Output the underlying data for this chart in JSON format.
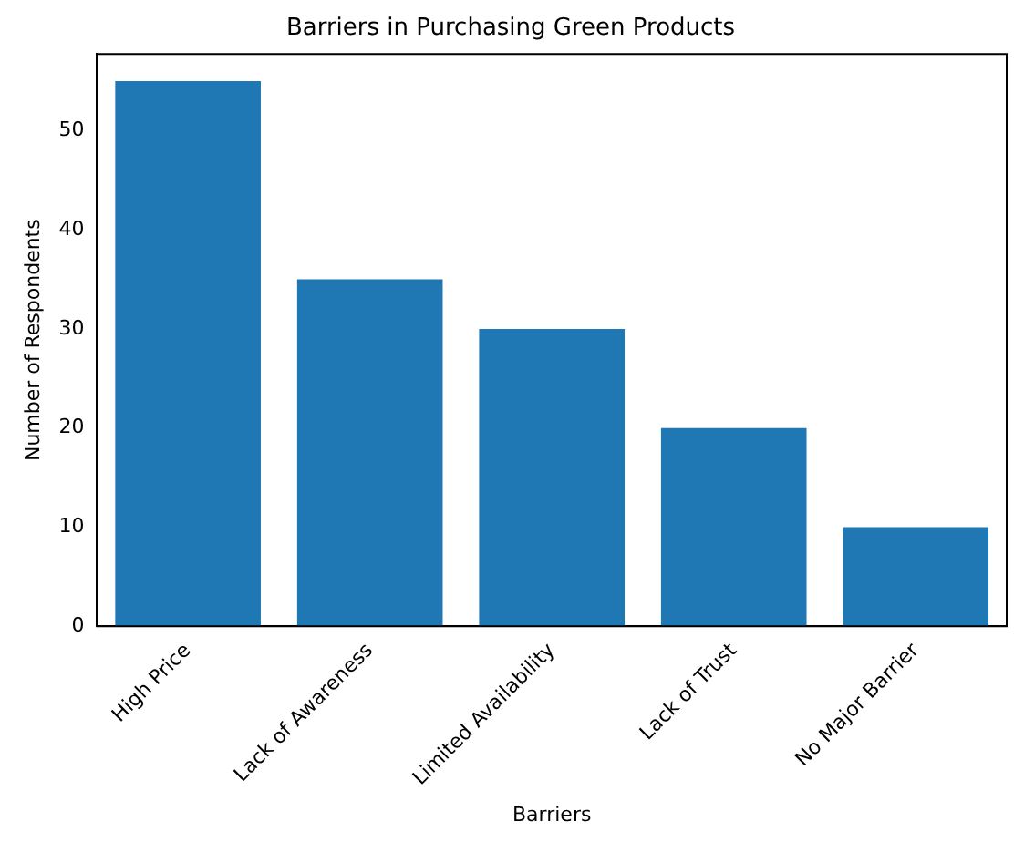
{
  "chart_data": {
    "type": "bar",
    "title": "Barriers in Purchasing Green Products",
    "xlabel": "Barriers",
    "ylabel": "Number of Respondents",
    "categories": [
      "High Price",
      "Lack of Awareness",
      "Limited Availability",
      "Lack of Trust",
      "No Major Barrier"
    ],
    "values": [
      55,
      35,
      30,
      20,
      10
    ],
    "color": "#1f77b4",
    "ylim": [
      0,
      57.75
    ],
    "yticks": [
      0,
      10,
      20,
      30,
      40,
      50
    ],
    "grid": false,
    "legend": false
  }
}
